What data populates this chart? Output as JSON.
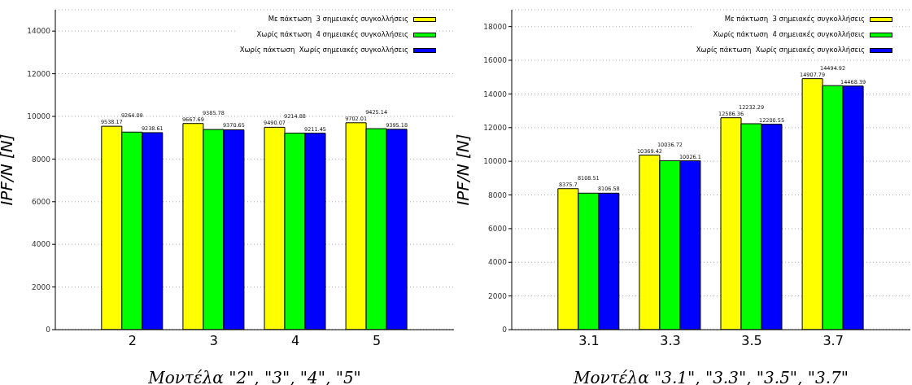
{
  "chart_data": [
    {
      "type": "bar",
      "ylabel": "IPF/N [N]",
      "xlabel": "Μοντέλα \"2\", \"3\", \"4\", \"5\"",
      "categories": [
        "2",
        "3",
        "4",
        "5"
      ],
      "series": [
        {
          "name": "Με πάκτωση  3 σημειακές συγκολλήσεις",
          "color": "#ffff00",
          "values": [
            9538.17,
            9667.69,
            9490.07,
            9702.01
          ]
        },
        {
          "name": "Χωρίς πάκτωση  4 σημειακές συγκολλήσεις",
          "color": "#00ff00",
          "values": [
            9264.09,
            9385.78,
            9214.88,
            9425.14
          ]
        },
        {
          "name": "Χωρίς πάκτωση  Χωρίς σημειακές συγκολλήσεις",
          "color": "#0000ff",
          "values": [
            9238.61,
            9370.65,
            9211.45,
            9395.18
          ]
        }
      ],
      "ylim": [
        0,
        15000
      ],
      "yticks": [
        0,
        2000,
        4000,
        6000,
        8000,
        10000,
        12000,
        14000
      ],
      "grid": "y",
      "legend": "top right",
      "data_labels": true
    },
    {
      "type": "bar",
      "ylabel": "IPF/N [N]",
      "xlabel": "Μοντέλα \"3.1\", \"3.3\", \"3.5\", \"3.7\"",
      "categories": [
        "3.1",
        "3.3",
        "3.5",
        "3.7"
      ],
      "series": [
        {
          "name": "Με πάκτωση  3 σημειακές συγκολλήσεις",
          "color": "#ffff00",
          "values": [
            8375.7,
            10369.42,
            12586.36,
            14907.79
          ]
        },
        {
          "name": "Χωρίς πάκτωση  4 σημειακές συγκολλήσεις",
          "color": "#00ff00",
          "values": [
            8108.51,
            10036.72,
            12232.29,
            14494.92
          ]
        },
        {
          "name": "Χωρίς πάκτωση  Χωρίς σημειακές συγκολλήσεις",
          "color": "#0000ff",
          "values": [
            8106.58,
            10026.1,
            12200.55,
            14468.39
          ]
        }
      ],
      "ylim": [
        0,
        19000
      ],
      "yticks": [
        0,
        2000,
        4000,
        6000,
        8000,
        10000,
        12000,
        14000,
        16000,
        18000
      ],
      "grid": "y",
      "legend": "top right",
      "data_labels": true
    }
  ]
}
